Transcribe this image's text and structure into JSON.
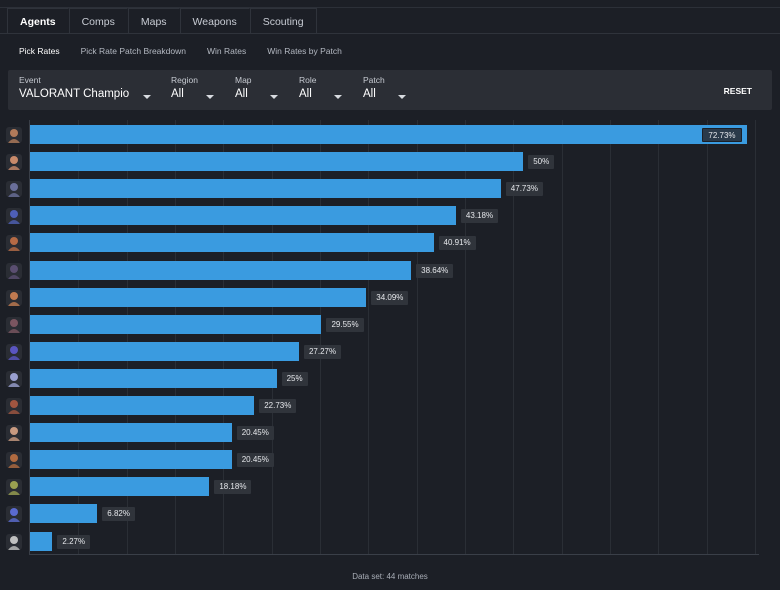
{
  "main_tabs": [
    "Agents",
    "Comps",
    "Maps",
    "Weapons",
    "Scouting"
  ],
  "sub_tabs": [
    "Pick Rates",
    "Pick Rate Patch Breakdown",
    "Win Rates",
    "Win Rates by Patch"
  ],
  "filters": [
    {
      "label": "Event",
      "value": "VALORANT Champions"
    },
    {
      "label": "Region",
      "value": "All"
    },
    {
      "label": "Map",
      "value": "All"
    },
    {
      "label": "Role",
      "value": "All"
    },
    {
      "label": "Patch",
      "value": "All"
    }
  ],
  "reset_label": "RESET",
  "footer": "Data set: 44 matches",
  "colors": {
    "bar": "#3a9be0",
    "background": "#1c1f26",
    "panel": "#2b2e35",
    "label_bg": "#30343b"
  },
  "chart_data": {
    "type": "bar",
    "orientation": "horizontal",
    "xlim": [
      0,
      73.5
    ],
    "grid": true,
    "values": [
      72.73,
      50,
      47.73,
      43.18,
      40.91,
      38.64,
      34.09,
      29.55,
      27.27,
      25,
      22.73,
      20.45,
      20.45,
      18.18,
      6.82,
      2.27
    ],
    "labels": [
      "72.73%",
      "50%",
      "47.73%",
      "43.18%",
      "40.91%",
      "38.64%",
      "34.09%",
      "29.55%",
      "27.27%",
      "25%",
      "22.73%",
      "20.45%",
      "20.45%",
      "18.18%",
      "6.82%",
      "2.27%"
    ],
    "icon_colors": [
      "#b07a5a",
      "#c98a6a",
      "#6a6f9a",
      "#4e5fb5",
      "#b56a45",
      "#5a4e70",
      "#c07a50",
      "#7a5560",
      "#5a55c0",
      "#9aa0d0",
      "#a05540",
      "#c89a80",
      "#b06a40",
      "#9aa050",
      "#5a6ad0",
      "#c0c0c0"
    ]
  }
}
